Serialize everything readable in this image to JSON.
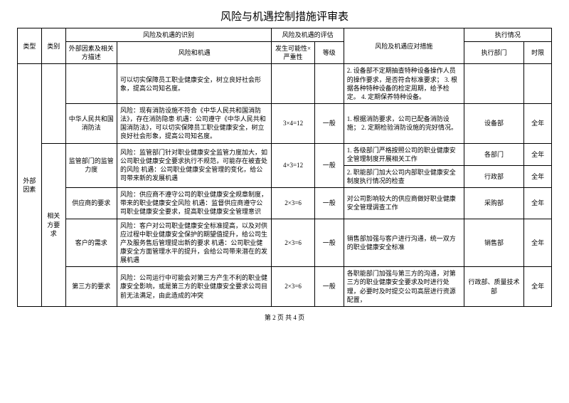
{
  "title": "风险与机遇控制措施评审表",
  "header": {
    "type": "类型",
    "category": "类别",
    "external": "外部因素及相关方描述",
    "risk_group": "风险及机遇的识别",
    "risk_opp": "风险和机遇",
    "eval_group": "风险及机遇的评估",
    "prob": "发生可能性×严重性",
    "grade": "等级",
    "measure": "风险及机遇应对措施",
    "exec_group": "执行情况",
    "dept": "执行部门",
    "time": "时限"
  },
  "type_label": "外部因素",
  "cat_label": "相关方要求",
  "rows": [
    {
      "ext": "",
      "risk": "可以切实保障员工职业健康安全，树立良好社会形象，提高公司知名度。",
      "prob": "",
      "grade": "",
      "measure": "2. 设备部不定期抽查特种设备操作人员的操作要求，是否符合标准要求；\n3. 根据各种特种设备的检定周期，给予检定。\n4. 定期保养特种设备。",
      "dept": "",
      "time": ""
    },
    {
      "ext": "中华人民共和国消防法",
      "risk": "风险：现有消防设施不符合《中华人民共和国消防法》，存在消防隐患\n机遇：公司遵守《中华人民共和国消防法》，可以切实保障员工职业健康安全，树立良好社会形象，提高公司知名度。",
      "prob": "3×4=12",
      "grade": "一般",
      "measure": "1. 根据消防要求，公司已配备消防设施；\n2. 定期检验消防设施的完好情况。",
      "dept": "设备部",
      "time": "全年"
    },
    {
      "ext": "监管部门的监管力度",
      "risk": "风险：监管部门针对职业健康安全监管力度加大，如公司职业健康安全要求执行不规范，可能存在被查处的风险\n机遇：公司职业健康安全管理的变化，给公司带来新的发展机遇",
      "prob": "4×3=12",
      "grade": "一般",
      "measure1": "1. 各级部门严格按照公司的职业健康安全管理制度开展相关工作",
      "measure2": "2. 职能部门加大公司内部职业健康安全制度执行情况的检查",
      "dept1": "各部门",
      "time1": "全年",
      "dept2": "行政部",
      "time2": "全年"
    },
    {
      "ext": "供应商的要求",
      "risk": "风险：供应商不遵守公司的职业健康安全规章制度，带来的职业健康安全风险\n机遇：监督供应商遵守公司职业健康安全要求，提高职业健康安全管理意识",
      "prob": "2×3=6",
      "grade": "一般",
      "measure": "对公司影响较大的供应商做好职业健康安全管理调查工作",
      "dept": "采购部",
      "time": "全年"
    },
    {
      "ext": "客户的需求",
      "risk": "风险：客户对公司职业健康安全标准提高，以及对供应过程中职业健康安全保护的期望值提升，给公司生产及服务售后管理提出新的要求\n机遇：公司职业健康安全方面管理水平的提升，会给公司带来潜在的发展机遇",
      "prob": "2×3=6",
      "grade": "一般",
      "measure": "销售部加强与客户进行沟通，统一双方的职业健康安全标准",
      "dept": "销售部",
      "time": "全年"
    },
    {
      "ext": "第三方的要求",
      "risk": "风险：公司运行中可能会对第三方产生不利的职业健康安全影响，或是第三方的职业健康安全要求公司目前无法满足，由此造成的冲突",
      "prob": "2×3=6",
      "grade": "一般",
      "measure": "各职能部门加强与第三方的沟通，对第三方的职业健康安全要求及时进行处理，必要时及时提交公司高层进行资源配置，",
      "dept": "行政部、质量技术部",
      "time": "全年"
    }
  ],
  "footer": "第 2 页 共 4 页"
}
